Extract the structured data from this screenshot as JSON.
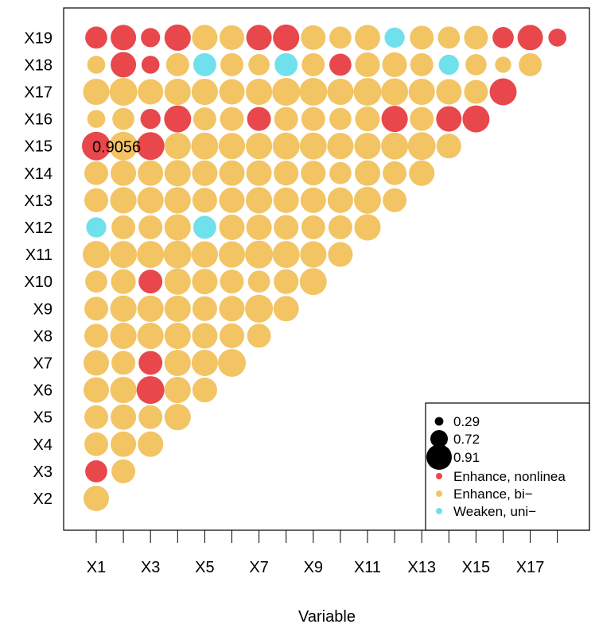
{
  "chart_data": {
    "type": "scatter",
    "xlabel": "Variable",
    "x_tick_labels": [
      "X1",
      "X3",
      "X5",
      "X7",
      "X9",
      "X11",
      "X13",
      "X15",
      "X17"
    ],
    "x_ticks": [
      1,
      2,
      3,
      4,
      5,
      6,
      7,
      8,
      9,
      10,
      11,
      12,
      13,
      14,
      15,
      16,
      17,
      18
    ],
    "y_categories": [
      "X2",
      "X3",
      "X4",
      "X5",
      "X6",
      "X7",
      "X8",
      "X9",
      "X10",
      "X11",
      "X12",
      "X13",
      "X14",
      "X15",
      "X16",
      "X17",
      "X18",
      "X19"
    ],
    "annotation": {
      "text": "0.9056",
      "x": 1,
      "y": "X15"
    },
    "legend": {
      "placement": "bottom-right",
      "sizes": [
        {
          "label": "0.29",
          "value": 0.29
        },
        {
          "label": "0.72",
          "value": 0.72
        },
        {
          "label": "0.91",
          "value": 0.91
        }
      ],
      "types": [
        {
          "key": "E",
          "label": "Enhance, nonlinea",
          "color": "#e8474c"
        },
        {
          "key": "B",
          "label": "Enhance, bi−",
          "color": "#f2c464"
        },
        {
          "key": "W",
          "label": "Weaken, uni−",
          "color": "#70e0ec"
        }
      ]
    },
    "series": [
      {
        "y": "X2",
        "values": [
          0.72
        ],
        "types": "B"
      },
      {
        "y": "X3",
        "values": [
          0.54,
          0.63
        ],
        "types": "EB"
      },
      {
        "y": "X4",
        "values": [
          0.63,
          0.72,
          0.72
        ],
        "types": "BBB"
      },
      {
        "y": "X5",
        "values": [
          0.63,
          0.72,
          0.63,
          0.77
        ],
        "types": "BBBB"
      },
      {
        "y": "X6",
        "values": [
          0.72,
          0.77,
          0.86,
          0.77,
          0.68
        ],
        "types": "BBEBB"
      },
      {
        "y": "X7",
        "values": [
          0.72,
          0.63,
          0.63,
          0.77,
          0.77,
          0.86
        ],
        "types": "BBEBBB"
      },
      {
        "y": "X8",
        "values": [
          0.63,
          0.77,
          0.77,
          0.77,
          0.72,
          0.68,
          0.63
        ],
        "types": "BBBBBBB"
      },
      {
        "y": "X9",
        "values": [
          0.63,
          0.77,
          0.77,
          0.77,
          0.68,
          0.72,
          0.86,
          0.72
        ],
        "types": "BBBBBBBB"
      },
      {
        "y": "X10",
        "values": [
          0.54,
          0.68,
          0.63,
          0.77,
          0.72,
          0.63,
          0.54,
          0.68,
          0.81
        ],
        "types": "BBEBBBBBB"
      },
      {
        "y": "X11",
        "values": [
          0.81,
          0.81,
          0.81,
          0.86,
          0.77,
          0.77,
          0.86,
          0.81,
          0.77,
          0.68
        ],
        "types": "BBBBBBBBBB"
      },
      {
        "y": "X12",
        "values": [
          0.45,
          0.63,
          0.63,
          0.77,
          0.59,
          0.72,
          0.72,
          0.68,
          0.63,
          0.63,
          0.77
        ],
        "types": "WBBBWBBBBBB"
      },
      {
        "y": "X13",
        "values": [
          0.63,
          0.77,
          0.77,
          0.77,
          0.68,
          0.72,
          0.77,
          0.72,
          0.72,
          0.72,
          0.81,
          0.63
        ],
        "types": "BBBBBBBBBBBB"
      },
      {
        "y": "X14",
        "values": [
          0.63,
          0.72,
          0.72,
          0.77,
          0.72,
          0.72,
          0.72,
          0.68,
          0.68,
          0.54,
          0.72,
          0.63,
          0.72
        ],
        "types": "BBBBBBBBBBBBB"
      },
      {
        "y": "X15",
        "values": [
          0.91,
          0.91,
          0.86,
          0.77,
          0.81,
          0.77,
          0.77,
          0.81,
          0.81,
          0.77,
          0.77,
          0.81,
          0.86,
          0.68
        ],
        "types": "EBEBBBBBBBBBBB"
      },
      {
        "y": "X16",
        "values": [
          0.36,
          0.54,
          0.45,
          0.81,
          0.59,
          0.63,
          0.63,
          0.63,
          0.63,
          0.54,
          0.68,
          0.77,
          0.63,
          0.72,
          0.81
        ],
        "types": "BBEEBBEBBBBEBEE"
      },
      {
        "y": "X17",
        "values": [
          0.77,
          0.86,
          0.72,
          0.77,
          0.77,
          0.72,
          0.77,
          0.86,
          0.86,
          0.77,
          0.86,
          0.81,
          0.77,
          0.72,
          0.63,
          0.81
        ],
        "types": "BBBBBBBBBBBBBBBE"
      },
      {
        "y": "X18",
        "values": [
          0.36,
          0.72,
          0.36,
          0.59,
          0.59,
          0.59,
          0.5,
          0.59,
          0.59,
          0.54,
          0.68,
          0.68,
          0.59,
          0.45,
          0.5,
          0.29,
          0.59
        ],
        "types": "BEEBWBBWBEBBBWBBB"
      },
      {
        "y": "X19",
        "values": [
          0.54,
          0.72,
          0.41,
          0.77,
          0.72,
          0.68,
          0.72,
          0.77,
          0.68,
          0.54,
          0.72,
          0.45,
          0.63,
          0.54,
          0.63,
          0.5,
          0.72,
          0.36
        ],
        "types": "EEEEBBEEBBBWBBBEEE"
      }
    ]
  }
}
